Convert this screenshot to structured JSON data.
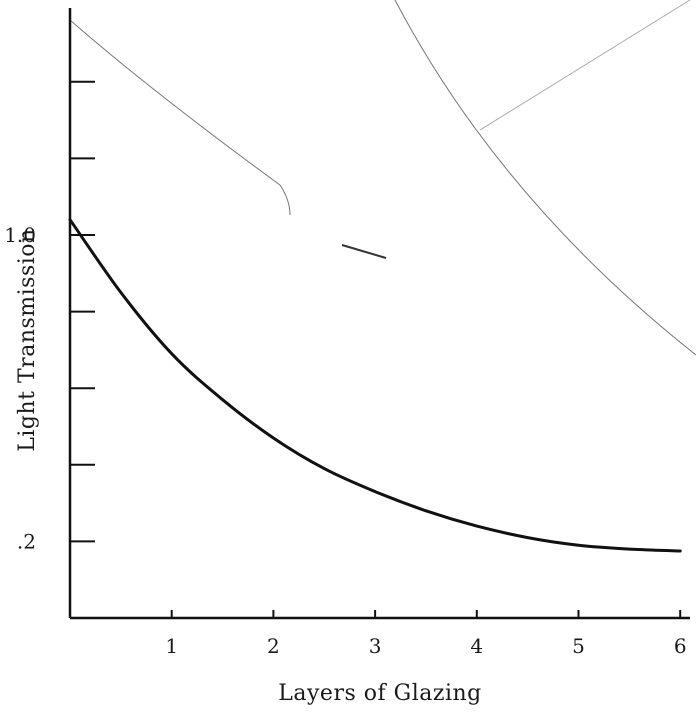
{
  "chart_data": {
    "type": "line",
    "title": "",
    "xlabel": "Layers of Glazing",
    "ylabel": "Light Transmission",
    "xlim": [
      0,
      6
    ],
    "ylim": [
      0,
      1.2
    ],
    "x_ticks": [
      {
        "value": 1,
        "label": "1"
      },
      {
        "value": 2,
        "label": "2"
      },
      {
        "value": 3,
        "label": "3"
      },
      {
        "value": 4,
        "label": "4"
      },
      {
        "value": 5,
        "label": "5"
      },
      {
        "value": 6,
        "label": "6"
      }
    ],
    "y_ticks": [
      {
        "value": 0.2,
        "label": ".2"
      },
      {
        "value": 0.4,
        "label": ""
      },
      {
        "value": 0.6,
        "label": ""
      },
      {
        "value": 0.8,
        "label": ""
      },
      {
        "value": 1.0,
        "label": "1.0"
      },
      {
        "value": 1.2,
        "label": ""
      },
      {
        "value": 1.4,
        "label": ""
      }
    ],
    "grid": false,
    "legend": "none",
    "series": [
      {
        "values": [
          {
            "x": 0.0,
            "y": 1.04
          },
          {
            "x": 0.5,
            "y": 0.85
          },
          {
            "x": 1.0,
            "y": 0.69
          },
          {
            "x": 1.5,
            "y": 0.57
          },
          {
            "x": 2.0,
            "y": 0.47
          },
          {
            "x": 2.5,
            "y": 0.39
          },
          {
            "x": 3.0,
            "y": 0.33
          },
          {
            "x": 3.5,
            "y": 0.28
          },
          {
            "x": 4.0,
            "y": 0.24
          },
          {
            "x": 4.5,
            "y": 0.21
          },
          {
            "x": 5.0,
            "y": 0.19
          },
          {
            "x": 5.5,
            "y": 0.18
          },
          {
            "x": 6.0,
            "y": 0.175
          }
        ]
      }
    ]
  }
}
